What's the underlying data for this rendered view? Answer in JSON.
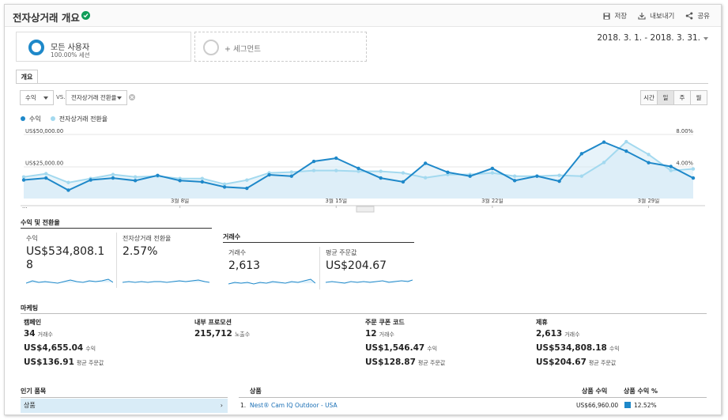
{
  "header": {
    "title": "전자상거래 개요",
    "actions": {
      "save": "저장",
      "export": "내보내기",
      "share": "공유"
    }
  },
  "segments": {
    "all_users": {
      "name": "모든 사용자",
      "sub": "100.00% 세션"
    },
    "add_segment": "+ 세그먼트"
  },
  "date_range": "2018. 3. 1. - 2018. 3. 31.",
  "tabs": {
    "overview": "개요"
  },
  "controls": {
    "metric1": "수익",
    "vs": "VS.",
    "metric2": "전자상거래 전환율",
    "granularity": [
      "시간",
      "일",
      "주",
      "월"
    ],
    "active_granularity": "일"
  },
  "chart_data": {
    "type": "line",
    "legend": [
      "수익",
      "전자상거래 전환율"
    ],
    "colors": {
      "revenue": "#1e88c9",
      "conversion": "#a3d9ef"
    },
    "y_left_ticks": [
      "US$50,000.00",
      "US$25,000.00"
    ],
    "y_right_ticks": [
      "8.00%",
      "4.00%"
    ],
    "y_left_range": [
      0,
      50000
    ],
    "y_right_range": [
      0,
      8
    ],
    "x_ticks": [
      {
        "day": 8,
        "label": "3월 8일"
      },
      {
        "day": 15,
        "label": "3월 15일"
      },
      {
        "day": 22,
        "label": "3월 22일"
      },
      {
        "day": 29,
        "label": "3월 29일"
      }
    ],
    "x_start_label": "...",
    "days": [
      1,
      2,
      3,
      4,
      5,
      6,
      7,
      8,
      9,
      10,
      11,
      12,
      13,
      14,
      15,
      16,
      17,
      18,
      19,
      20,
      21,
      22,
      23,
      24,
      25,
      26,
      27,
      28,
      29,
      30,
      31
    ],
    "series": [
      {
        "name": "수익",
        "values": [
          14500,
          16000,
          6500,
          14500,
          16000,
          14000,
          18000,
          14000,
          13000,
          9000,
          8000,
          18500,
          17500,
          29000,
          31500,
          23500,
          16000,
          13000,
          27500,
          20500,
          17500,
          23500,
          14000,
          17500,
          13500,
          35000,
          44000,
          37000,
          28000,
          25000,
          16000
        ]
      },
      {
        "name": "전자상거래 전환율",
        "values": [
          2.7,
          3.1,
          2.0,
          2.5,
          3.0,
          2.7,
          2.8,
          2.5,
          2.5,
          1.8,
          2.3,
          3.2,
          3.3,
          3.5,
          3.5,
          3.4,
          3.4,
          3.2,
          2.6,
          3.0,
          3.0,
          3.2,
          2.8,
          2.8,
          2.9,
          2.8,
          4.5,
          7.1,
          5.5,
          3.5,
          3.7
        ]
      }
    ]
  },
  "kpis": {
    "section1_title": "수익 및 전환율",
    "section2_title": "거래수",
    "revenue": {
      "label": "수익",
      "value": "US$534,808.18"
    },
    "conversion": {
      "label": "전자상거래 전환율",
      "value": "2.57%"
    },
    "transactions": {
      "label": "거래수",
      "value": "2,613"
    },
    "avg_order": {
      "label": "평균 주문값",
      "value": "US$204.67"
    }
  },
  "marketing": {
    "title": "마케팅",
    "columns": [
      {
        "title": "캠페인",
        "r1": "34",
        "r1s": "거래수",
        "r2": "US$4,655.04",
        "r2s": "수익",
        "r3": "US$136.91",
        "r3s": "평균 주문값"
      },
      {
        "title": "내부 프로모션",
        "r1": "215,712",
        "r1s": "노출수"
      },
      {
        "title": "주문 쿠폰 코드",
        "r1": "12",
        "r1s": "거래수",
        "r2": "US$1,546.47",
        "r2s": "수익",
        "r3": "US$128.87",
        "r3s": "평균 주문값"
      },
      {
        "title": "제휴",
        "r1": "2,613",
        "r1s": "거래수",
        "r2": "US$534,808.18",
        "r2s": "수익",
        "r3": "US$204.67",
        "r3s": "평균 주문값"
      }
    ]
  },
  "popular": {
    "title": "인기 품목",
    "item": "상품",
    "arrow": "›"
  },
  "products_table": {
    "col_product": "상품",
    "col_revenue": "상품 수익",
    "col_share": "상품 수익 %",
    "rows": [
      {
        "rank": "1.",
        "name": "Nest® Cam IQ Outdoor - USA",
        "revenue": "US$66,960.00",
        "share": "12.52%"
      }
    ]
  }
}
